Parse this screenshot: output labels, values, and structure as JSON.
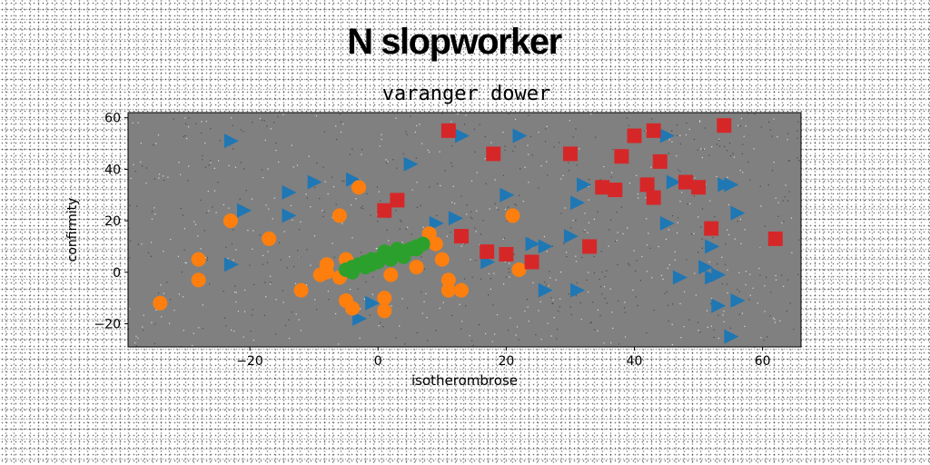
{
  "figure": {
    "suptitle": "N slopworker"
  },
  "chart_data": {
    "type": "scatter",
    "title": "varanger dower",
    "xlabel": "isotherombrose",
    "ylabel": "confirmity",
    "xlim": [
      -39,
      66
    ],
    "ylim": [
      -29,
      62
    ],
    "xticks": [
      -20,
      0,
      20,
      40,
      60
    ],
    "yticks": [
      -20,
      0,
      20,
      40,
      60
    ],
    "tick_labels_x": [
      "−20",
      "0",
      "20",
      "40",
      "60"
    ],
    "tick_labels_y": [
      "−20",
      "0",
      "20",
      "40",
      "60"
    ],
    "grid": false,
    "legend": "none",
    "axes_background": "#808080",
    "series": [
      {
        "marker": "triangle-right",
        "color": "#1f77b4",
        "points": [
          [
            -23,
            51
          ],
          [
            -21,
            24
          ],
          [
            -14,
            31
          ],
          [
            -14,
            22
          ],
          [
            -10,
            35
          ],
          [
            -23,
            3
          ],
          [
            -4,
            36
          ],
          [
            5,
            42
          ],
          [
            9,
            19
          ],
          [
            12,
            21
          ],
          [
            13,
            53
          ],
          [
            22,
            53
          ],
          [
            20,
            30
          ],
          [
            17,
            4
          ],
          [
            24,
            11
          ],
          [
            26,
            10
          ],
          [
            26,
            -7
          ],
          [
            31,
            -7
          ],
          [
            30,
            14
          ],
          [
            31,
            27
          ],
          [
            32,
            34
          ],
          [
            45,
            53
          ],
          [
            45,
            19
          ],
          [
            46,
            35
          ],
          [
            47,
            -2
          ],
          [
            51,
            2
          ],
          [
            52,
            10
          ],
          [
            52,
            -2
          ],
          [
            53,
            -1
          ],
          [
            53,
            -13
          ],
          [
            54,
            34
          ],
          [
            55,
            34
          ],
          [
            56,
            23
          ],
          [
            56,
            -11
          ],
          [
            55,
            -25
          ],
          [
            -3,
            -18
          ],
          [
            -1,
            -12
          ]
        ]
      },
      {
        "marker": "circle",
        "color": "#ff7f0e",
        "points": [
          [
            -34,
            -12
          ],
          [
            -28,
            5
          ],
          [
            -28,
            -3
          ],
          [
            -23,
            20
          ],
          [
            -17,
            13
          ],
          [
            -12,
            -7
          ],
          [
            -8,
            0
          ],
          [
            -8,
            3
          ],
          [
            -6,
            -2
          ],
          [
            -6,
            22
          ],
          [
            -5,
            5
          ],
          [
            -5,
            -11
          ],
          [
            -4,
            -14
          ],
          [
            -3,
            33
          ],
          [
            1,
            -10
          ],
          [
            1,
            -15
          ],
          [
            2,
            -1
          ],
          [
            6,
            2
          ],
          [
            8,
            15
          ],
          [
            9,
            11
          ],
          [
            10,
            5
          ],
          [
            11,
            -7
          ],
          [
            11,
            -3
          ],
          [
            13,
            -7
          ],
          [
            21,
            22
          ],
          [
            22,
            1
          ],
          [
            -9,
            -1
          ]
        ]
      },
      {
        "marker": "circle",
        "color": "#2ca02c",
        "points": [
          [
            -5,
            1
          ],
          [
            -4,
            2
          ],
          [
            -3,
            3
          ],
          [
            -2,
            4
          ],
          [
            -1,
            3
          ],
          [
            0,
            5
          ],
          [
            1,
            6
          ],
          [
            2,
            7
          ],
          [
            3,
            7
          ],
          [
            4,
            8
          ],
          [
            5,
            9
          ],
          [
            6,
            10
          ],
          [
            7,
            11
          ],
          [
            -4,
            0
          ],
          [
            -2,
            2
          ],
          [
            0,
            4
          ],
          [
            2,
            5
          ],
          [
            4,
            6
          ],
          [
            6,
            9
          ],
          [
            3,
            9
          ],
          [
            1,
            8
          ],
          [
            -1,
            5
          ]
        ]
      },
      {
        "marker": "square",
        "color": "#d62728",
        "points": [
          [
            11,
            55
          ],
          [
            18,
            46
          ],
          [
            30,
            46
          ],
          [
            33,
            10
          ],
          [
            35,
            33
          ],
          [
            37,
            32
          ],
          [
            38,
            45
          ],
          [
            40,
            53
          ],
          [
            43,
            55
          ],
          [
            43,
            29
          ],
          [
            44,
            43
          ],
          [
            42,
            34
          ],
          [
            48,
            35
          ],
          [
            50,
            33
          ],
          [
            52,
            17
          ],
          [
            54,
            57
          ],
          [
            62,
            13
          ],
          [
            13,
            14
          ],
          [
            17,
            8
          ],
          [
            20,
            7
          ],
          [
            24,
            4
          ],
          [
            1,
            24
          ],
          [
            3,
            28
          ]
        ]
      }
    ]
  }
}
